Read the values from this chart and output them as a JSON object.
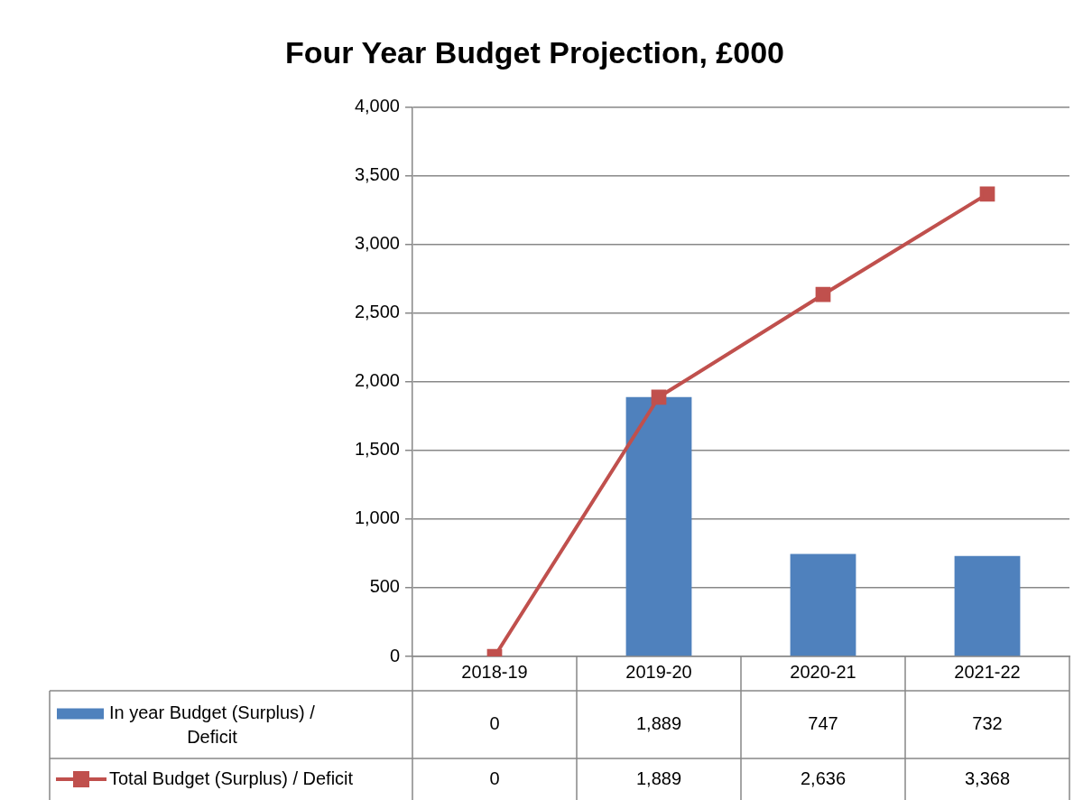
{
  "chart_data": {
    "type": "bar",
    "title": "Four Year Budget Projection, £000",
    "categories": [
      "2018-19",
      "2019-20",
      "2020-21",
      "2021-22"
    ],
    "series": [
      {
        "name": "In year Budget (Surplus) / Deficit",
        "color": "#4f81bd",
        "values": [
          0,
          1889,
          747,
          732
        ],
        "value_labels": [
          "0",
          "1,889",
          "747",
          "732"
        ]
      },
      {
        "name": "Total Budget (Surplus) / Deficit",
        "type": "line",
        "color": "#c0504d",
        "values": [
          0,
          1889,
          2636,
          3368
        ],
        "value_labels": [
          "0",
          "1,889",
          "2,636",
          "3,368"
        ]
      }
    ],
    "ylim": [
      0,
      4000
    ],
    "yticks": [
      0,
      500,
      {
        "value": 1000,
        "label": "1,000"
      },
      {
        "value": 1500,
        "label": "1,500"
      },
      {
        "value": 2000,
        "label": "2,000"
      },
      {
        "value": 2500,
        "label": "2,500"
      },
      {
        "value": 3000,
        "label": "3,000"
      },
      {
        "value": 3500,
        "label": "3,500"
      },
      {
        "value": 4000,
        "label": "4,000"
      }
    ],
    "grid": "y",
    "legend": "bottom",
    "marker": "square"
  }
}
